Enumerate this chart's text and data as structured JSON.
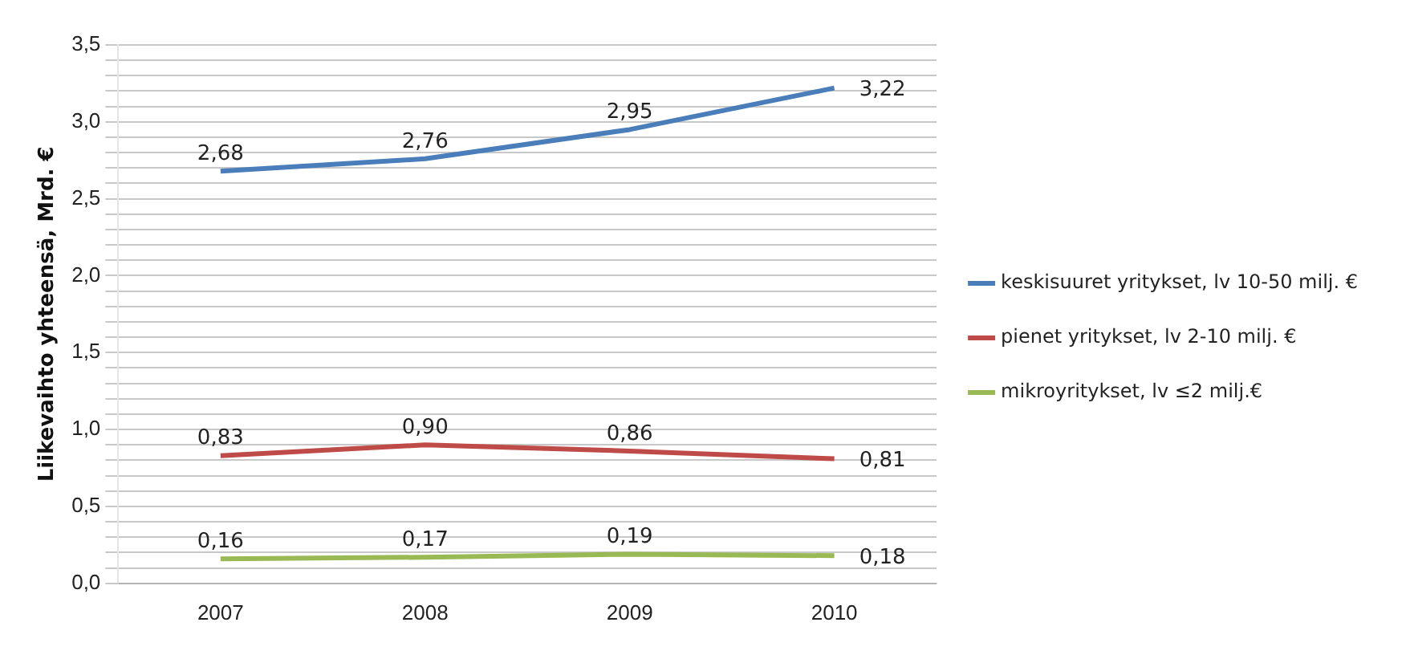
{
  "chart_data": {
    "type": "line",
    "ylabel": "Liikevaihto yhteensä, Mrd. €",
    "categories": [
      "2007",
      "2008",
      "2009",
      "2010"
    ],
    "series": [
      {
        "name": "keskisuuret yritykset, lv 10-50 milj. €",
        "color": "#4a7ebb",
        "values": [
          2.68,
          2.76,
          2.95,
          3.22
        ],
        "value_labels": [
          "2,68",
          "2,76",
          "2,95",
          "3,22"
        ]
      },
      {
        "name": "pienet yritykset, lv 2-10 milj. €",
        "color": "#be4b48",
        "values": [
          0.83,
          0.9,
          0.86,
          0.81
        ],
        "value_labels": [
          "0,83",
          "0,90",
          "0,86",
          "0,81"
        ]
      },
      {
        "name": "mikroyritykset, lv ≤2 milj.€",
        "color": "#98b954",
        "values": [
          0.16,
          0.17,
          0.19,
          0.18
        ],
        "value_labels": [
          "0,16",
          "0,17",
          "0,19",
          "0,18"
        ]
      }
    ],
    "ylim": [
      0,
      3.5
    ],
    "yticks": [
      {
        "value": 0,
        "label": "0,0"
      },
      {
        "value": 0.1,
        "label": null
      },
      {
        "value": 0.2,
        "label": null
      },
      {
        "value": 0.3,
        "label": null
      },
      {
        "value": 0.4,
        "label": null
      },
      {
        "value": 0.5,
        "label": "0,5"
      },
      {
        "value": 0.6,
        "label": null
      },
      {
        "value": 0.7,
        "label": null
      },
      {
        "value": 0.8,
        "label": null
      },
      {
        "value": 0.9,
        "label": null
      },
      {
        "value": 1.0,
        "label": "1,0"
      },
      {
        "value": 1.1,
        "label": null
      },
      {
        "value": 1.2,
        "label": null
      },
      {
        "value": 1.3,
        "label": null
      },
      {
        "value": 1.4,
        "label": null
      },
      {
        "value": 1.5,
        "label": "1,5"
      },
      {
        "value": 1.6,
        "label": null
      },
      {
        "value": 1.7,
        "label": null
      },
      {
        "value": 1.8,
        "label": null
      },
      {
        "value": 1.9,
        "label": null
      },
      {
        "value": 2.0,
        "label": "2,0"
      },
      {
        "value": 2.1,
        "label": null
      },
      {
        "value": 2.2,
        "label": null
      },
      {
        "value": 2.3,
        "label": null
      },
      {
        "value": 2.4,
        "label": null
      },
      {
        "value": 2.5,
        "label": "2,5"
      },
      {
        "value": 2.6,
        "label": null
      },
      {
        "value": 2.7,
        "label": null
      },
      {
        "value": 2.8,
        "label": null
      },
      {
        "value": 2.9,
        "label": null
      },
      {
        "value": 3.0,
        "label": "3,0"
      },
      {
        "value": 3.1,
        "label": null
      },
      {
        "value": 3.2,
        "label": null
      },
      {
        "value": 3.3,
        "label": null
      },
      {
        "value": 3.4,
        "label": null
      },
      {
        "value": 3.5,
        "label": "3,5"
      }
    ],
    "grid": "y",
    "legend": "right",
    "marker": "none",
    "line_style": "solid"
  }
}
